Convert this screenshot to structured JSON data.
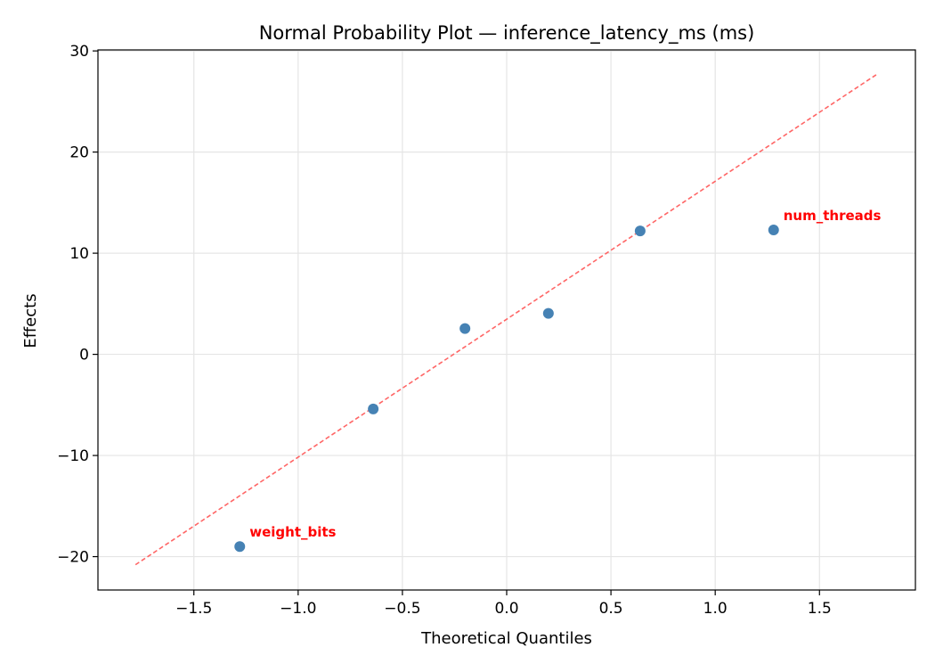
{
  "chart_data": {
    "type": "scatter",
    "title": "Normal Probability Plot — inference_latency_ms (ms)",
    "xlabel": "Theoretical Quantiles",
    "ylabel": "Effects",
    "xlim": [
      -1.96,
      1.96
    ],
    "ylim": [
      -23.3,
      30.1
    ],
    "xticks": [
      -1.5,
      -1.0,
      -0.5,
      0.0,
      0.5,
      1.0,
      1.5
    ],
    "xtick_labels": [
      "−1.5",
      "−1.0",
      "−0.5",
      "0.0",
      "0.5",
      "1.0",
      "1.5"
    ],
    "yticks": [
      -20,
      -10,
      0,
      10,
      20,
      30
    ],
    "ytick_labels": [
      "−20",
      "−10",
      "0",
      "10",
      "20",
      "30"
    ],
    "grid": true,
    "points": [
      {
        "x": -1.28,
        "y": -19.0,
        "label": "weight_bits"
      },
      {
        "x": -0.64,
        "y": -5.4,
        "label": ""
      },
      {
        "x": -0.2,
        "y": 2.55,
        "label": ""
      },
      {
        "x": 0.2,
        "y": 4.05,
        "label": ""
      },
      {
        "x": 0.64,
        "y": 12.2,
        "label": ""
      },
      {
        "x": 1.28,
        "y": 12.3,
        "label": "num_threads"
      }
    ],
    "reference_line": {
      "x": [
        -1.78,
        1.78
      ],
      "y": [
        -20.8,
        27.75
      ],
      "style": "dashed"
    },
    "colors": {
      "points": "#4682b4",
      "line": "#ff6666",
      "labels": "#ff0000",
      "grid": "#e5e5e5"
    }
  }
}
